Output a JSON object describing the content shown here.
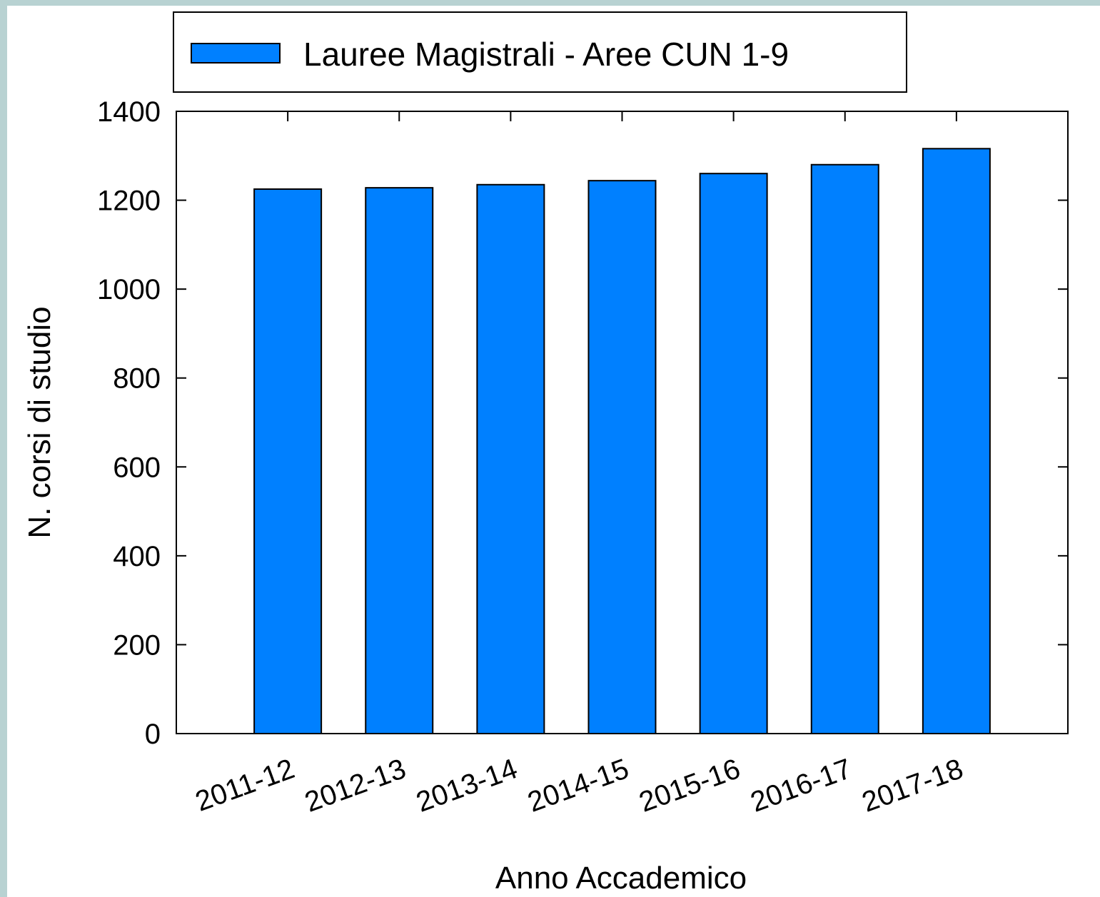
{
  "chart_data": {
    "type": "bar",
    "series": [
      {
        "name": "Lauree Magistrali - Aree CUN 1-9",
        "color": "#0080ff",
        "values": [
          1225,
          1228,
          1235,
          1244,
          1260,
          1280,
          1316
        ]
      }
    ],
    "categories": [
      "2011-12",
      "2012-13",
      "2013-14",
      "2014-15",
      "2015-16",
      "2016-17",
      "2017-18"
    ],
    "x_label": "Anno Accademico",
    "y_label": "N. corsi di studio",
    "ylim": [
      0,
      1400
    ],
    "yticks": [
      0,
      200,
      400,
      600,
      800,
      1000,
      1200,
      1400
    ],
    "legend": "top"
  }
}
